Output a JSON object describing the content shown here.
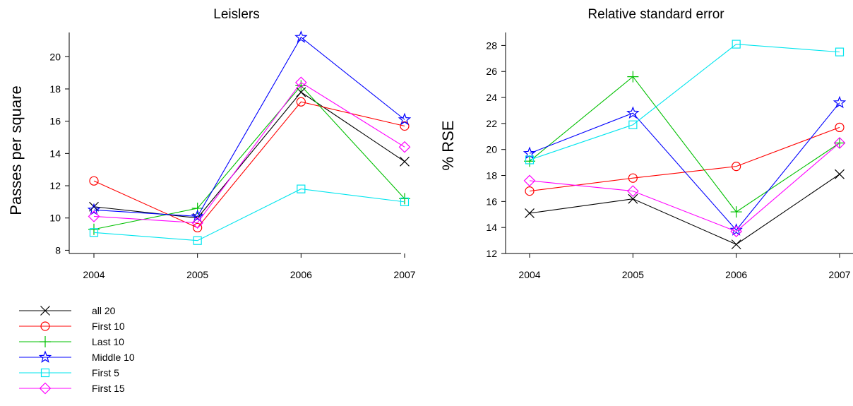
{
  "chart_data": [
    {
      "type": "line",
      "title": "Leislers",
      "xlabel": "",
      "ylabel": "Passes per square",
      "x": [
        2004,
        2005,
        2006,
        2007
      ],
      "ylim": [
        7.8,
        21.5
      ],
      "yticks": [
        8,
        10,
        12,
        14,
        16,
        18,
        20
      ],
      "series": [
        {
          "name": "all 20",
          "color": "#000000",
          "marker": "x",
          "values": [
            10.7,
            10.0,
            17.8,
            13.5
          ]
        },
        {
          "name": "First 10",
          "color": "#ff0000",
          "marker": "circle",
          "values": [
            12.3,
            9.4,
            17.2,
            15.7
          ]
        },
        {
          "name": "Last 10",
          "color": "#00c000",
          "marker": "plus",
          "values": [
            9.3,
            10.6,
            18.2,
            11.2
          ]
        },
        {
          "name": "Middle 10",
          "color": "#0000ff",
          "marker": "star",
          "values": [
            10.5,
            10.1,
            21.2,
            16.1
          ]
        },
        {
          "name": "First 5",
          "color": "#00e5ee",
          "marker": "square",
          "values": [
            9.1,
            8.6,
            11.8,
            11.0
          ]
        },
        {
          "name": "First 15",
          "color": "#ff00ff",
          "marker": "diamond",
          "values": [
            10.1,
            9.7,
            18.4,
            14.4
          ]
        }
      ]
    },
    {
      "type": "line",
      "title": "Relative standard error",
      "xlabel": "",
      "ylabel": "% RSE",
      "x": [
        2004,
        2005,
        2006,
        2007
      ],
      "ylim": [
        12,
        29
      ],
      "yticks": [
        12,
        14,
        16,
        18,
        20,
        22,
        24,
        26,
        28
      ],
      "series": [
        {
          "name": "all 20",
          "color": "#000000",
          "marker": "x",
          "values": [
            15.1,
            16.2,
            12.7,
            18.1
          ]
        },
        {
          "name": "First 10",
          "color": "#ff0000",
          "marker": "circle",
          "values": [
            16.8,
            17.8,
            18.7,
            21.7
          ]
        },
        {
          "name": "Last 10",
          "color": "#00c000",
          "marker": "plus",
          "values": [
            19.1,
            25.6,
            15.2,
            20.5
          ]
        },
        {
          "name": "Middle 10",
          "color": "#0000ff",
          "marker": "star",
          "values": [
            19.7,
            22.8,
            13.8,
            23.6
          ]
        },
        {
          "name": "First 5",
          "color": "#00e5ee",
          "marker": "square",
          "values": [
            19.2,
            21.9,
            28.1,
            27.5
          ]
        },
        {
          "name": "First 15",
          "color": "#ff00ff",
          "marker": "diamond",
          "values": [
            17.6,
            16.8,
            13.7,
            20.5
          ]
        }
      ]
    }
  ]
}
